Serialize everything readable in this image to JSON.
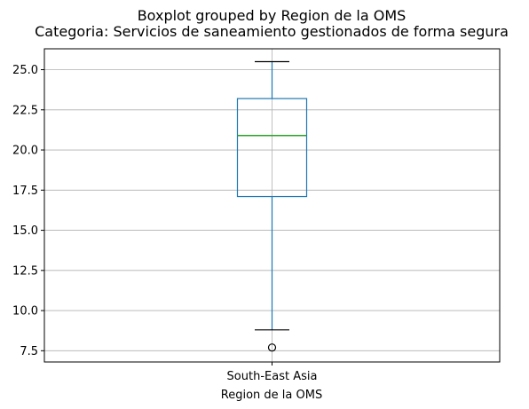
{
  "chart_data": {
    "type": "boxplot",
    "suptitle": "Boxplot grouped by Region de la OMS",
    "title": "Categoria: Servicios de saneamiento gestionados de forma segura",
    "xlabel": "Region de la OMS",
    "ylabel": "",
    "categories": [
      "South-East Asia"
    ],
    "boxes": [
      {
        "category": "South-East Asia",
        "whisker_low": 8.8,
        "q1": 17.1,
        "median": 20.9,
        "q3": 23.2,
        "whisker_high": 25.5,
        "outliers": [
          7.7
        ]
      }
    ],
    "ylim": [
      6.8,
      26.3
    ],
    "yticks": [
      7.5,
      10.0,
      12.5,
      15.0,
      17.5,
      20.0,
      22.5,
      25.0
    ],
    "ytick_labels": [
      "7.5",
      "10.0",
      "12.5",
      "15.0",
      "17.5",
      "20.0",
      "22.5",
      "25.0"
    ],
    "grid": true,
    "colors": {
      "box": "#1f77b4",
      "median": "#2ca02c",
      "whisker": "#1f77b4",
      "cap": "#000000",
      "flier": "#000000",
      "grid": "#b0b0b0"
    }
  }
}
